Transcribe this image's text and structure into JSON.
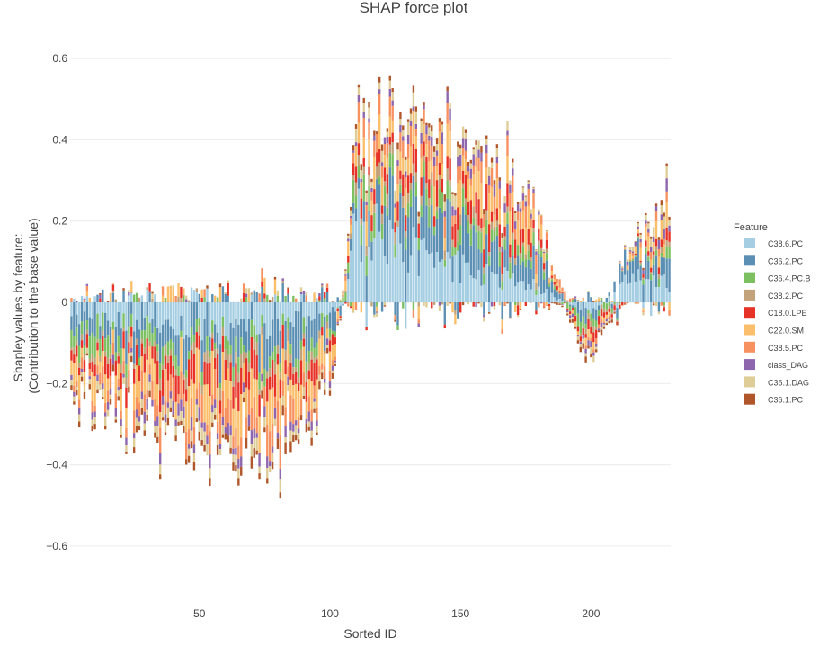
{
  "chart_data": {
    "type": "bar",
    "barmode": "relative",
    "title": "SHAP force plot",
    "xlabel": "Sorted ID",
    "ylabel_lines": [
      "Shapley values by feature:",
      "(Contribution to the base value)"
    ],
    "xlim": [
      0.5,
      230.5
    ],
    "ylim": [
      -0.7,
      0.7
    ],
    "x_ticks": [
      50,
      100,
      150,
      200
    ],
    "y_ticks": [
      -0.6,
      -0.4,
      -0.2,
      0,
      0.2,
      0.4,
      0.6
    ],
    "y_tick_labels": [
      "−0.6",
      "−0.4",
      "−0.2",
      "0",
      "0.2",
      "0.4",
      "0.6"
    ],
    "grid": true,
    "legend": {
      "title": "Feature",
      "placement": "right"
    },
    "n_samples": 230,
    "series": [
      {
        "name": "C38.6.PC",
        "color": "#a6cee3",
        "anchors": [
          [
            1,
            -0.03
          ],
          [
            20,
            -0.04
          ],
          [
            40,
            -0.05
          ],
          [
            60,
            -0.06
          ],
          [
            80,
            -0.05
          ],
          [
            100,
            -0.02
          ],
          [
            106,
            0.0
          ],
          [
            110,
            0.18
          ],
          [
            120,
            0.15
          ],
          [
            140,
            0.1
          ],
          [
            160,
            0.06
          ],
          [
            180,
            0.03
          ],
          [
            190,
            0.0
          ],
          [
            200,
            -0.02
          ],
          [
            205,
            0.0
          ],
          [
            215,
            0.06
          ],
          [
            230,
            0.04
          ]
        ]
      },
      {
        "name": "C36.2.PC",
        "color": "#5b8fb3",
        "anchors": [
          [
            1,
            -0.05
          ],
          [
            40,
            -0.05
          ],
          [
            60,
            -0.06
          ],
          [
            80,
            -0.08
          ],
          [
            100,
            -0.05
          ],
          [
            108,
            0.02
          ],
          [
            120,
            0.08
          ],
          [
            140,
            0.09
          ],
          [
            160,
            0.07
          ],
          [
            180,
            0.06
          ],
          [
            195,
            -0.02
          ],
          [
            200,
            -0.04
          ],
          [
            210,
            0.04
          ],
          [
            230,
            0.05
          ]
        ]
      },
      {
        "name": "C36.4.PC.B",
        "color": "#7cc061",
        "anchors": [
          [
            1,
            -0.04
          ],
          [
            40,
            -0.03
          ],
          [
            60,
            -0.02
          ],
          [
            80,
            -0.03
          ],
          [
            100,
            -0.02
          ],
          [
            110,
            0.04
          ],
          [
            130,
            0.03
          ],
          [
            160,
            0.03
          ],
          [
            180,
            0.02
          ],
          [
            195,
            -0.02
          ],
          [
            205,
            -0.01
          ],
          [
            230,
            0.02
          ]
        ]
      },
      {
        "name": "C38.2.PC",
        "color": "#c2a27a",
        "anchors": [
          [
            1,
            -0.01
          ],
          [
            40,
            -0.02
          ],
          [
            80,
            -0.02
          ],
          [
            100,
            -0.01
          ],
          [
            110,
            0.02
          ],
          [
            140,
            0.02
          ],
          [
            180,
            0.01
          ],
          [
            200,
            -0.01
          ],
          [
            230,
            0.01
          ]
        ]
      },
      {
        "name": "C18.0.LPE",
        "color": "#e63227",
        "anchors": [
          [
            1,
            -0.02
          ],
          [
            40,
            -0.04
          ],
          [
            60,
            -0.05
          ],
          [
            80,
            -0.04
          ],
          [
            100,
            -0.03
          ],
          [
            110,
            0.03
          ],
          [
            140,
            0.04
          ],
          [
            170,
            0.04
          ],
          [
            190,
            0.0
          ],
          [
            200,
            -0.02
          ],
          [
            230,
            0.02
          ]
        ]
      },
      {
        "name": "C22.0.SM",
        "color": "#fbbf6b",
        "anchors": [
          [
            1,
            -0.04
          ],
          [
            40,
            -0.06
          ],
          [
            60,
            -0.07
          ],
          [
            80,
            -0.06
          ],
          [
            100,
            -0.04
          ],
          [
            110,
            0.05
          ],
          [
            140,
            0.05
          ],
          [
            170,
            0.05
          ],
          [
            190,
            0.0
          ],
          [
            200,
            -0.02
          ],
          [
            230,
            0.04
          ]
        ]
      },
      {
        "name": "C38.5.PC",
        "color": "#f7915f",
        "anchors": [
          [
            1,
            -0.02
          ],
          [
            40,
            -0.04
          ],
          [
            80,
            -0.05
          ],
          [
            100,
            -0.02
          ],
          [
            110,
            0.03
          ],
          [
            140,
            0.03
          ],
          [
            180,
            0.03
          ],
          [
            200,
            -0.01
          ],
          [
            230,
            0.02
          ]
        ]
      },
      {
        "name": "class_DAG",
        "color": "#8e66ae",
        "anchors": [
          [
            1,
            -0.01
          ],
          [
            40,
            -0.02
          ],
          [
            80,
            -0.02
          ],
          [
            100,
            -0.01
          ],
          [
            110,
            0.01
          ],
          [
            160,
            0.02
          ],
          [
            200,
            -0.01
          ],
          [
            230,
            0.02
          ]
        ]
      },
      {
        "name": "C36.1.DAG",
        "color": "#dfcd98",
        "anchors": [
          [
            1,
            -0.01
          ],
          [
            40,
            -0.02
          ],
          [
            80,
            -0.02
          ],
          [
            100,
            -0.01
          ],
          [
            110,
            0.02
          ],
          [
            160,
            0.02
          ],
          [
            200,
            -0.01
          ],
          [
            230,
            0.02
          ]
        ]
      },
      {
        "name": "C36.1.PC",
        "color": "#b0562a",
        "anchors": [
          [
            1,
            -0.01
          ],
          [
            40,
            -0.01
          ],
          [
            80,
            -0.02
          ],
          [
            100,
            -0.01
          ],
          [
            110,
            0.01
          ],
          [
            160,
            0.01
          ],
          [
            200,
            -0.01
          ],
          [
            230,
            0.01
          ]
        ]
      }
    ]
  }
}
